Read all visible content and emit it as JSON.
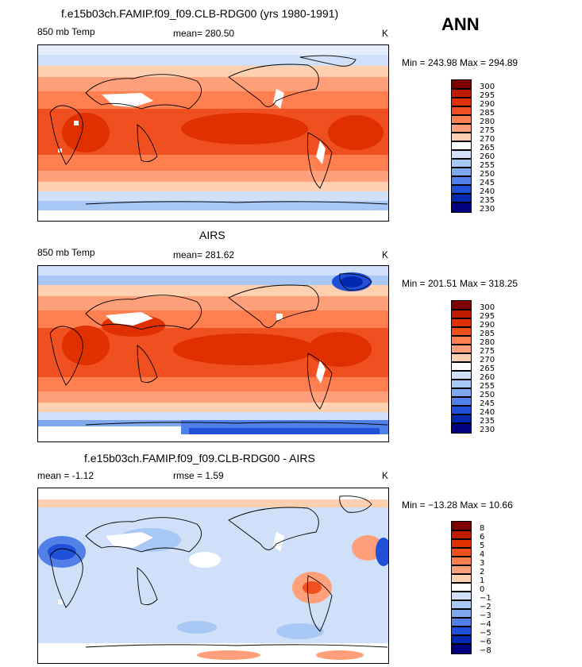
{
  "season": "ANN",
  "panels": [
    {
      "title": "f.e15b03ch.FAMIP.f09_f09.CLB-RDG00 (yrs 1980-1991)",
      "variable": "850 mb Temp",
      "stat": "mean=  280.50",
      "unit": "K",
      "minmax": "Min = 243.98 Max = 294.89",
      "legend": [
        "300",
        "295",
        "290",
        "285",
        "280",
        "275",
        "270",
        "265",
        "260",
        "255",
        "250",
        "245",
        "240",
        "235",
        "230"
      ]
    },
    {
      "title": "AIRS",
      "variable": "850 mb Temp",
      "stat": "mean=  281.62",
      "unit": "K",
      "minmax": "Min = 201.51 Max = 318.25",
      "legend": [
        "300",
        "295",
        "290",
        "285",
        "280",
        "275",
        "270",
        "265",
        "260",
        "255",
        "250",
        "245",
        "240",
        "235",
        "230"
      ]
    },
    {
      "title": "f.e15b03ch.FAMIP.f09_f09.CLB-RDG00 - AIRS",
      "stat_mean": "mean =   -1.12",
      "stat_rmse": "rmse =    1.59",
      "unit": "K",
      "minmax": "Min = −13.28 Max =  10.66",
      "legend": [
        "8",
        "6",
        "5",
        "4",
        "3",
        "2",
        "1",
        "0",
        "−1",
        "−2",
        "−3",
        "−4",
        "−5",
        "−6",
        "−8"
      ]
    }
  ],
  "colors": {
    "abs_scale": [
      "#800000",
      "#c01a00",
      "#e03000",
      "#f05020",
      "#ff7f50",
      "#ffa07a",
      "#ffd0b0",
      "#ffffff",
      "#cfe0f8",
      "#a8c8f5",
      "#7fa8ee",
      "#5080e8",
      "#2050d8",
      "#0028b0",
      "#000080"
    ],
    "diff_scale": [
      "#800000",
      "#c01a00",
      "#e03000",
      "#f05020",
      "#ff7f50",
      "#ffa07a",
      "#ffd0b0",
      "#ffffff",
      "#cfe0f8",
      "#a8c8f5",
      "#7fa8ee",
      "#5080e8",
      "#2050d8",
      "#0028b0",
      "#000080"
    ]
  }
}
